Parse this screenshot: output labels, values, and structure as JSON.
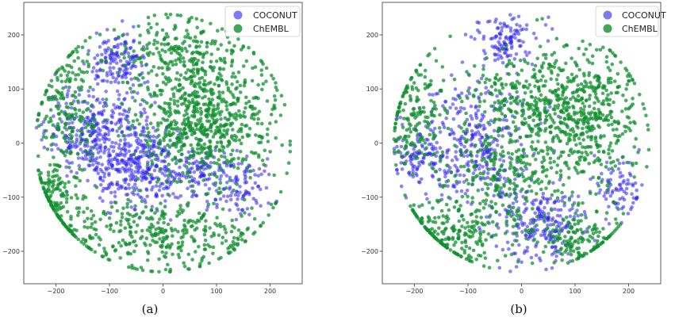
{
  "colors": {
    "coconut": "#2a1ff0",
    "chembl": "#12902f",
    "frame": "#333333"
  },
  "chart_data": [
    {
      "type": "scatter",
      "caption": "(a)",
      "xlim": [
        -260,
        260
      ],
      "ylim": [
        -260,
        260
      ],
      "xticks": [
        -200,
        -100,
        0,
        100,
        200
      ],
      "yticks": [
        -200,
        -100,
        0,
        100,
        200
      ],
      "grid": false,
      "legend_placement": "top-right",
      "series": [
        {
          "name": "COCONUT",
          "clusters": [
            {
              "cx": -120,
              "cy": 20,
              "rx": 100,
              "ry": 85,
              "n": 340
            },
            {
              "cx": -50,
              "cy": -40,
              "rx": 90,
              "ry": 80,
              "n": 300
            },
            {
              "cx": -80,
              "cy": 150,
              "rx": 55,
              "ry": 55,
              "n": 140
            },
            {
              "cx": 60,
              "cy": -60,
              "rx": 70,
              "ry": 55,
              "n": 130
            },
            {
              "cx": 150,
              "cy": -80,
              "rx": 60,
              "ry": 55,
              "n": 90
            }
          ]
        },
        {
          "name": "ChEMBL",
          "clusters": [
            {
              "cx": 100,
              "cy": 60,
              "rx": 130,
              "ry": 120,
              "n": 460
            },
            {
              "cx": 0,
              "cy": -170,
              "rx": 200,
              "ry": 70,
              "n": 380
            },
            {
              "cx": -180,
              "cy": 70,
              "rx": 60,
              "ry": 120,
              "n": 200
            },
            {
              "cx": -200,
              "cy": -100,
              "rx": 60,
              "ry": 80,
              "n": 160
            },
            {
              "cx": 20,
              "cy": 160,
              "rx": 120,
              "ry": 70,
              "n": 220
            },
            {
              "cx": 50,
              "cy": 20,
              "rx": 110,
              "ry": 100,
              "n": 260
            }
          ]
        }
      ]
    },
    {
      "type": "scatter",
      "caption": "(b)",
      "xlim": [
        -260,
        260
      ],
      "ylim": [
        -260,
        260
      ],
      "xticks": [
        -200,
        -100,
        0,
        100,
        200
      ],
      "yticks": [
        -200,
        -100,
        0,
        100,
        200
      ],
      "grid": false,
      "legend_placement": "top-right",
      "series": [
        {
          "name": "COCONUT",
          "clusters": [
            {
              "cx": -100,
              "cy": 0,
              "rx": 120,
              "ry": 120,
              "n": 360
            },
            {
              "cx": 30,
              "cy": -150,
              "rx": 90,
              "ry": 65,
              "n": 240
            },
            {
              "cx": -30,
              "cy": 190,
              "rx": 60,
              "ry": 45,
              "n": 120
            },
            {
              "cx": 180,
              "cy": -80,
              "rx": 45,
              "ry": 60,
              "n": 80
            },
            {
              "cx": -190,
              "cy": -30,
              "rx": 40,
              "ry": 40,
              "n": 70
            }
          ]
        },
        {
          "name": "ChEMBL",
          "clusters": [
            {
              "cx": 120,
              "cy": 40,
              "rx": 120,
              "ry": 140,
              "n": 460
            },
            {
              "cx": 20,
              "cy": 80,
              "rx": 130,
              "ry": 80,
              "n": 320
            },
            {
              "cx": -200,
              "cy": 60,
              "rx": 60,
              "ry": 100,
              "n": 180
            },
            {
              "cx": -130,
              "cy": -170,
              "rx": 110,
              "ry": 70,
              "n": 240
            },
            {
              "cx": 100,
              "cy": -180,
              "rx": 90,
              "ry": 55,
              "n": 160
            },
            {
              "cx": -30,
              "cy": -60,
              "rx": 110,
              "ry": 90,
              "n": 240
            }
          ]
        }
      ]
    }
  ]
}
